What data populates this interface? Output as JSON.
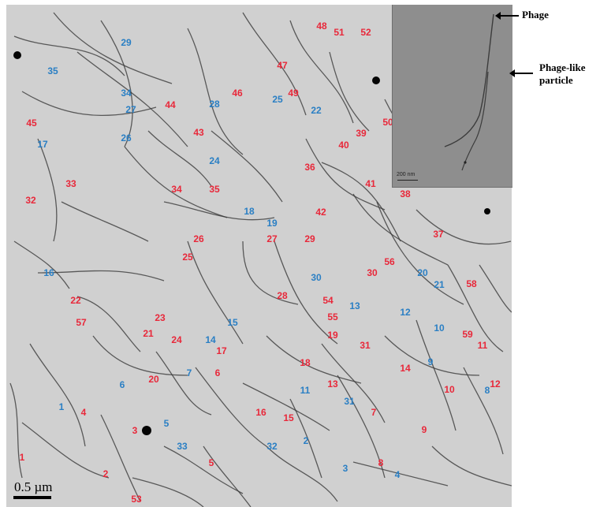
{
  "annotations": {
    "phage": "Phage",
    "phage_like_line1": "Phage-like",
    "phage_like_line2": "particle"
  },
  "scale_bar": {
    "label": "0.5 µm"
  },
  "inset": {
    "scale_label": "200 nm"
  },
  "colors": {
    "red_label": "#e8283a",
    "blue_label": "#2a7fc4",
    "filament": "#3a3a3a",
    "background": "#d0d0d0"
  },
  "red_labels": [
    "48",
    "51",
    "52",
    "47",
    "49",
    "44",
    "46",
    "45",
    "43",
    "50",
    "39",
    "40",
    "36",
    "33",
    "34",
    "35",
    "41",
    "38",
    "32",
    "42",
    "37",
    "26",
    "27",
    "29",
    "25",
    "56",
    "30",
    "58",
    "28",
    "54",
    "22",
    "55",
    "57",
    "23",
    "59",
    "21",
    "24",
    "19",
    "11",
    "17",
    "31",
    "18",
    "6",
    "14",
    "20",
    "12",
    "13",
    "10",
    "4",
    "16",
    "15",
    "7",
    "9",
    "3",
    "5",
    "1",
    "8",
    "2",
    "53"
  ],
  "blue_labels": [
    "29",
    "35",
    "34",
    "28",
    "27",
    "25",
    "22",
    "26",
    "17",
    "24",
    "18",
    "19",
    "16",
    "30",
    "20",
    "21",
    "13",
    "12",
    "15",
    "10",
    "14",
    "9",
    "7",
    "11",
    "6",
    "8",
    "1",
    "31",
    "5",
    "33",
    "32",
    "2",
    "3",
    "4"
  ]
}
